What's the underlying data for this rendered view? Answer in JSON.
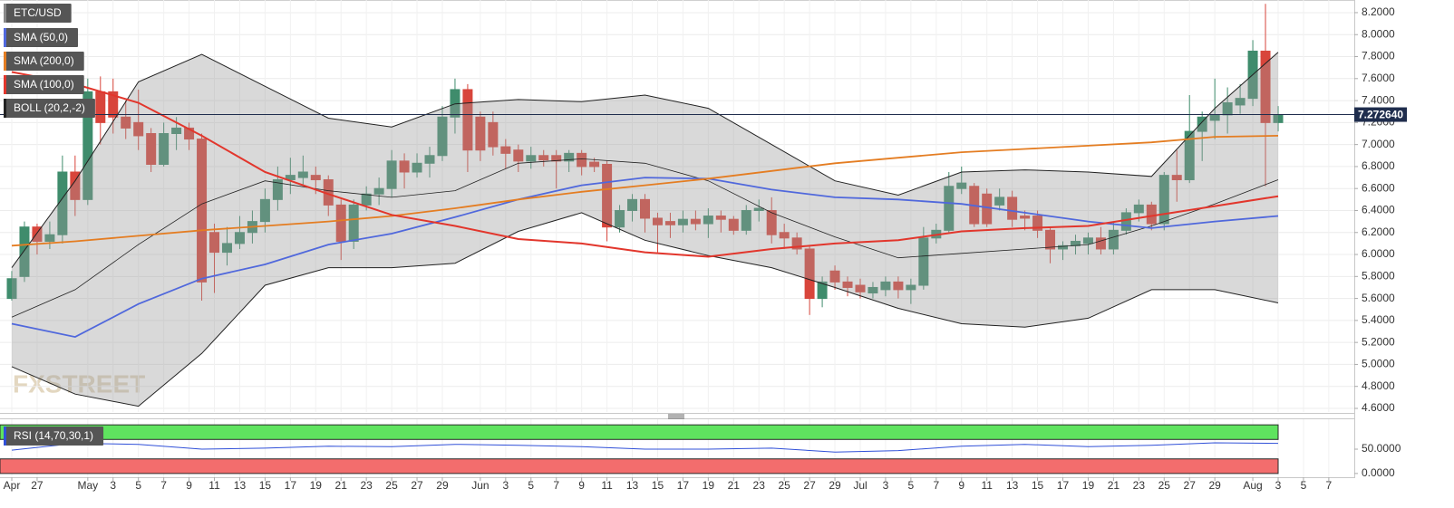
{
  "chart_data": {
    "type": "candlestick",
    "symbol": "ETC/USD",
    "watermark": "FXSTREET",
    "categories": [
      "Apr 25",
      "Apr 26",
      "Apr 27",
      "Apr 28",
      "Apr 29",
      "Apr 30",
      "May 1",
      "May 2",
      "May 3",
      "May 4",
      "May 5",
      "May 6",
      "May 7",
      "May 8",
      "May 9",
      "May 10",
      "May 11",
      "May 12",
      "May 13",
      "May 14",
      "May 15",
      "May 16",
      "May 17",
      "May 18",
      "May 19",
      "May 20",
      "May 21",
      "May 22",
      "May 23",
      "May 24",
      "May 25",
      "May 26",
      "May 27",
      "May 28",
      "May 29",
      "May 30",
      "May 31",
      "Jun 1",
      "Jun 2",
      "Jun 3",
      "Jun 4",
      "Jun 5",
      "Jun 6",
      "Jun 7",
      "Jun 8",
      "Jun 9",
      "Jun 10",
      "Jun 11",
      "Jun 12",
      "Jun 13",
      "Jun 14",
      "Jun 15",
      "Jun 16",
      "Jun 17",
      "Jun 18",
      "Jun 19",
      "Jun 20",
      "Jun 21",
      "Jun 22",
      "Jun 23",
      "Jun 24",
      "Jun 25",
      "Jun 26",
      "Jun 27",
      "Jun 28",
      "Jun 29",
      "Jun 30",
      "Jul 1",
      "Jul 2",
      "Jul 3",
      "Jul 4",
      "Jul 5",
      "Jul 6",
      "Jul 7",
      "Jul 8",
      "Jul 9",
      "Jul 10",
      "Jul 11",
      "Jul 12",
      "Jul 13",
      "Jul 14",
      "Jul 15",
      "Jul 16",
      "Jul 17",
      "Jul 18",
      "Jul 19",
      "Jul 20",
      "Jul 21",
      "Jul 22",
      "Jul 23",
      "Jul 24",
      "Jul 25",
      "Jul 26",
      "Jul 27",
      "Jul 28",
      "Jul 29",
      "Jul 30",
      "Jul 31",
      "Aug 1",
      "Aug 2",
      "Aug 3",
      "Aug 4",
      "Aug 5",
      "Aug 6",
      "Aug 7"
    ],
    "open": [
      5.6,
      5.8,
      6.25,
      6.12,
      6.18,
      6.75,
      6.5,
      7.48,
      7.48,
      7.25,
      7.2,
      7.1,
      6.82,
      7.1,
      7.15,
      7.05,
      6.2,
      6.02,
      6.1,
      6.2,
      6.3,
      6.5,
      6.68,
      6.7,
      6.72,
      6.68,
      6.45,
      6.12,
      6.45,
      6.55,
      6.6,
      6.85,
      6.75,
      6.83,
      6.9,
      7.25,
      7.5,
      7.25,
      7.2,
      6.98,
      6.95,
      6.85,
      6.9,
      6.9,
      6.85,
      6.92,
      6.84,
      6.82,
      6.25,
      6.4,
      6.5,
      6.33,
      6.3,
      6.27,
      6.32,
      6.28,
      6.35,
      6.32,
      6.22,
      6.4,
      6.4,
      6.2,
      6.15,
      6.05,
      5.6,
      5.85,
      5.75,
      5.72,
      5.65,
      5.68,
      5.75,
      5.68,
      5.72,
      6.15,
      6.22,
      6.6,
      6.62,
      6.55,
      6.45,
      6.52,
      6.35,
      6.35,
      6.22,
      6.05,
      6.08,
      6.1,
      6.15,
      6.05,
      6.22,
      6.38,
      6.45,
      6.28,
      6.72,
      6.68,
      7.12,
      7.22,
      7.27,
      7.36,
      7.42,
      7.85,
      7.2,
      null,
      null,
      null,
      null
    ],
    "high": [
      5.85,
      6.3,
      6.28,
      6.3,
      6.9,
      6.9,
      7.6,
      7.62,
      7.6,
      7.4,
      7.5,
      7.15,
      7.2,
      7.25,
      7.2,
      7.1,
      6.28,
      6.25,
      6.35,
      6.4,
      6.6,
      6.8,
      6.88,
      6.9,
      6.8,
      6.72,
      6.5,
      6.5,
      6.62,
      6.7,
      6.95,
      6.92,
      6.92,
      6.98,
      7.35,
      7.6,
      7.55,
      7.3,
      7.3,
      7.05,
      7.0,
      6.98,
      6.95,
      6.95,
      6.95,
      6.95,
      6.88,
      6.85,
      6.45,
      6.55,
      6.55,
      6.38,
      6.38,
      6.4,
      6.4,
      6.42,
      6.4,
      6.35,
      6.45,
      6.5,
      6.52,
      6.28,
      6.2,
      6.08,
      5.8,
      5.9,
      5.8,
      5.78,
      5.75,
      5.8,
      5.8,
      5.78,
      6.25,
      6.28,
      6.75,
      6.8,
      6.65,
      6.6,
      6.6,
      6.58,
      6.4,
      6.4,
      6.25,
      6.12,
      6.18,
      6.2,
      6.25,
      6.3,
      6.42,
      6.5,
      6.48,
      6.75,
      6.95,
      7.45,
      7.3,
      7.6,
      7.52,
      7.55,
      7.95,
      8.28,
      7.35,
      null,
      null,
      null,
      null
    ],
    "low": [
      5.58,
      5.75,
      6.0,
      6.05,
      6.1,
      6.35,
      6.45,
      7.0,
      7.1,
      7.05,
      6.95,
      6.75,
      6.8,
      6.95,
      6.95,
      5.58,
      5.65,
      5.9,
      6.05,
      6.1,
      6.2,
      6.4,
      6.55,
      6.62,
      6.55,
      6.35,
      5.95,
      6.05,
      6.4,
      6.45,
      6.52,
      6.6,
      6.7,
      6.7,
      6.85,
      7.1,
      6.75,
      6.85,
      6.9,
      6.78,
      6.75,
      6.78,
      6.8,
      6.6,
      6.75,
      6.72,
      6.75,
      6.12,
      6.2,
      6.3,
      6.2,
      6.02,
      6.15,
      6.2,
      6.22,
      6.15,
      6.2,
      6.18,
      6.18,
      6.3,
      6.1,
      6.05,
      6.0,
      5.45,
      5.52,
      5.68,
      5.62,
      5.6,
      5.6,
      5.62,
      5.6,
      5.55,
      5.68,
      6.1,
      6.2,
      6.55,
      6.25,
      6.25,
      6.4,
      6.25,
      6.22,
      6.15,
      5.92,
      5.95,
      6.0,
      6.0,
      6.0,
      6.0,
      6.18,
      6.3,
      6.22,
      6.22,
      6.48,
      6.65,
      6.85,
      7.05,
      7.1,
      7.28,
      7.35,
      6.62,
      7.12,
      null,
      null,
      null,
      null
    ],
    "close": [
      5.78,
      6.25,
      6.12,
      6.18,
      6.75,
      6.5,
      7.48,
      7.2,
      7.25,
      7.15,
      7.08,
      6.82,
      7.1,
      7.15,
      7.05,
      5.75,
      6.02,
      6.1,
      6.2,
      6.3,
      6.5,
      6.68,
      6.72,
      6.75,
      6.68,
      6.45,
      6.12,
      6.45,
      6.55,
      6.6,
      6.85,
      6.75,
      6.83,
      6.9,
      7.25,
      7.5,
      6.95,
      6.95,
      6.98,
      6.92,
      6.85,
      6.9,
      6.86,
      6.85,
      6.92,
      6.8,
      6.8,
      6.25,
      6.4,
      6.5,
      6.33,
      6.27,
      6.27,
      6.32,
      6.28,
      6.35,
      6.32,
      6.22,
      6.4,
      6.42,
      6.18,
      6.15,
      6.05,
      5.6,
      5.75,
      5.75,
      5.7,
      5.66,
      5.7,
      5.75,
      5.68,
      5.72,
      6.15,
      6.22,
      6.62,
      6.65,
      6.28,
      6.28,
      6.52,
      6.32,
      6.33,
      6.22,
      6.05,
      6.08,
      6.12,
      6.15,
      6.05,
      6.22,
      6.38,
      6.45,
      6.28,
      6.72,
      6.68,
      7.12,
      7.25,
      7.27,
      7.38,
      7.42,
      7.85,
      7.2,
      7.27,
      null,
      null,
      null,
      null
    ],
    "colors": {
      "up": "#3f8c6c",
      "down": "#d8453b"
    },
    "overlay_dates": [
      "Apr 25",
      "Apr 30",
      "May 5",
      "May 10",
      "May 15",
      "May 20",
      "May 25",
      "May 30",
      "Jun 4",
      "Jun 9",
      "Jun 14",
      "Jun 19",
      "Jun 24",
      "Jun 29",
      "Jul 4",
      "Jul 9",
      "Jul 14",
      "Jul 19",
      "Jul 24",
      "Jul 29",
      "Aug 3"
    ],
    "overlays": [
      {
        "name": "SMA (50,0)",
        "color": "#5068dc",
        "values": [
          5.37,
          5.25,
          5.55,
          5.78,
          5.91,
          6.09,
          6.19,
          6.34,
          6.5,
          6.63,
          6.7,
          6.69,
          6.59,
          6.52,
          6.5,
          6.46,
          6.38,
          6.3,
          6.24,
          6.3,
          6.35
        ]
      },
      {
        "name": "SMA (200,0)",
        "color": "#e47d22",
        "values": [
          6.08,
          6.12,
          6.17,
          6.22,
          6.26,
          6.3,
          6.35,
          6.42,
          6.5,
          6.57,
          6.63,
          6.69,
          6.76,
          6.83,
          6.88,
          6.93,
          6.96,
          6.99,
          7.02,
          7.07,
          7.08
        ]
      },
      {
        "name": "SMA (100,0)",
        "color": "#e2362c",
        "values": [
          7.66,
          7.55,
          7.38,
          7.08,
          6.75,
          6.55,
          6.36,
          6.26,
          6.14,
          6.1,
          6.02,
          5.98,
          6.05,
          6.1,
          6.13,
          6.21,
          6.24,
          6.26,
          6.35,
          6.44,
          6.53
        ]
      }
    ],
    "bollinger": {
      "name": "BOLL (20,2,-2)",
      "color": "#222222",
      "fill": "#9a9a9a",
      "upper": [
        5.88,
        6.67,
        7.57,
        7.82,
        7.53,
        7.24,
        7.16,
        7.37,
        7.41,
        7.39,
        7.45,
        7.33,
        7.0,
        6.67,
        6.54,
        6.75,
        6.77,
        6.75,
        6.71,
        7.33,
        7.84
      ],
      "middle": [
        5.43,
        5.68,
        6.09,
        6.46,
        6.67,
        6.58,
        6.52,
        6.58,
        6.83,
        6.87,
        6.83,
        6.67,
        6.38,
        6.16,
        5.97,
        6.01,
        6.05,
        6.09,
        6.26,
        6.46,
        6.68
      ],
      "lower": [
        4.98,
        4.73,
        4.62,
        5.1,
        5.72,
        5.88,
        5.88,
        5.92,
        6.21,
        6.38,
        6.13,
        5.99,
        5.88,
        5.7,
        5.51,
        5.37,
        5.34,
        5.42,
        5.68,
        5.68,
        5.56
      ]
    },
    "last_price": {
      "value": 7.27264,
      "label": "7.272640"
    },
    "ylim": [
      4.567,
      8.315
    ],
    "yticks": [
      {
        "value": 8.2,
        "label": "8.2000"
      },
      {
        "value": 8.0,
        "label": "8.0000"
      },
      {
        "value": 7.8,
        "label": "7.8000"
      },
      {
        "value": 7.6,
        "label": "7.6000"
      },
      {
        "value": 7.4,
        "label": "7.4000"
      },
      {
        "value": 7.2,
        "label": "7.2000"
      },
      {
        "value": 7.0,
        "label": "7.0000"
      },
      {
        "value": 6.8,
        "label": "6.8000"
      },
      {
        "value": 6.6,
        "label": "6.6000"
      },
      {
        "value": 6.4,
        "label": "6.4000"
      },
      {
        "value": 6.2,
        "label": "6.2000"
      },
      {
        "value": 6.0,
        "label": "6.0000"
      },
      {
        "value": 5.8,
        "label": "5.8000"
      },
      {
        "value": 5.6,
        "label": "5.6000"
      },
      {
        "value": 5.4,
        "label": "5.4000"
      },
      {
        "value": 5.2,
        "label": "5.2000"
      },
      {
        "value": 5.0,
        "label": "5.0000"
      },
      {
        "value": 4.8,
        "label": "4.8000"
      },
      {
        "value": 4.6,
        "label": "4.6000"
      }
    ],
    "xticks": [
      {
        "value": "Apr 25",
        "label": "Apr"
      },
      {
        "value": "Apr 27",
        "label": "27"
      },
      {
        "value": "May 1",
        "label": "May"
      },
      {
        "value": "May 3",
        "label": "3"
      },
      {
        "value": "May 5",
        "label": "5"
      },
      {
        "value": "May 7",
        "label": "7"
      },
      {
        "value": "May 9",
        "label": "9"
      },
      {
        "value": "May 11",
        "label": "11"
      },
      {
        "value": "May 13",
        "label": "13"
      },
      {
        "value": "May 15",
        "label": "15"
      },
      {
        "value": "May 17",
        "label": "17"
      },
      {
        "value": "May 19",
        "label": "19"
      },
      {
        "value": "May 21",
        "label": "21"
      },
      {
        "value": "May 23",
        "label": "23"
      },
      {
        "value": "May 25",
        "label": "25"
      },
      {
        "value": "May 27",
        "label": "27"
      },
      {
        "value": "May 29",
        "label": "29"
      },
      {
        "value": "Jun 1",
        "label": "Jun"
      },
      {
        "value": "Jun 3",
        "label": "3"
      },
      {
        "value": "Jun 5",
        "label": "5"
      },
      {
        "value": "Jun 7",
        "label": "7"
      },
      {
        "value": "Jun 9",
        "label": "9"
      },
      {
        "value": "Jun 11",
        "label": "11"
      },
      {
        "value": "Jun 13",
        "label": "13"
      },
      {
        "value": "Jun 15",
        "label": "15"
      },
      {
        "value": "Jun 17",
        "label": "17"
      },
      {
        "value": "Jun 19",
        "label": "19"
      },
      {
        "value": "Jun 21",
        "label": "21"
      },
      {
        "value": "Jun 23",
        "label": "23"
      },
      {
        "value": "Jun 25",
        "label": "25"
      },
      {
        "value": "Jun 27",
        "label": "27"
      },
      {
        "value": "Jun 29",
        "label": "29"
      },
      {
        "value": "Jul 1",
        "label": "Jul"
      },
      {
        "value": "Jul 3",
        "label": "3"
      },
      {
        "value": "Jul 5",
        "label": "5"
      },
      {
        "value": "Jul 7",
        "label": "7"
      },
      {
        "value": "Jul 9",
        "label": "9"
      },
      {
        "value": "Jul 11",
        "label": "11"
      },
      {
        "value": "Jul 13",
        "label": "13"
      },
      {
        "value": "Jul 15",
        "label": "15"
      },
      {
        "value": "Jul 17",
        "label": "17"
      },
      {
        "value": "Jul 19",
        "label": "19"
      },
      {
        "value": "Jul 21",
        "label": "21"
      },
      {
        "value": "Jul 23",
        "label": "23"
      },
      {
        "value": "Jul 25",
        "label": "25"
      },
      {
        "value": "Jul 27",
        "label": "27"
      },
      {
        "value": "Jul 29",
        "label": "29"
      },
      {
        "value": "Aug 1",
        "label": "Aug"
      },
      {
        "value": "Aug 3",
        "label": "3"
      },
      {
        "value": "Aug 5",
        "label": "5"
      },
      {
        "value": "Aug 7",
        "label": "7"
      }
    ],
    "grid": true,
    "rsi": {
      "name": "RSI (14,70,30,1)",
      "color": "#3050d8",
      "values": [
        48,
        62,
        60,
        50,
        52,
        56,
        55,
        60,
        58,
        55,
        50,
        50,
        52,
        44,
        47,
        56,
        60,
        55,
        58,
        63,
        62
      ],
      "ylim": [
        -7.7,
        111.5
      ],
      "yticks": [
        {
          "value": 50,
          "label": "50.0000"
        },
        {
          "value": 0,
          "label": "0.0000"
        }
      ],
      "zones": [
        {
          "from": 70,
          "to": 100,
          "color": "#5fe35f"
        },
        {
          "from": 0,
          "to": 30,
          "color": "#f36d6d"
        }
      ]
    }
  }
}
